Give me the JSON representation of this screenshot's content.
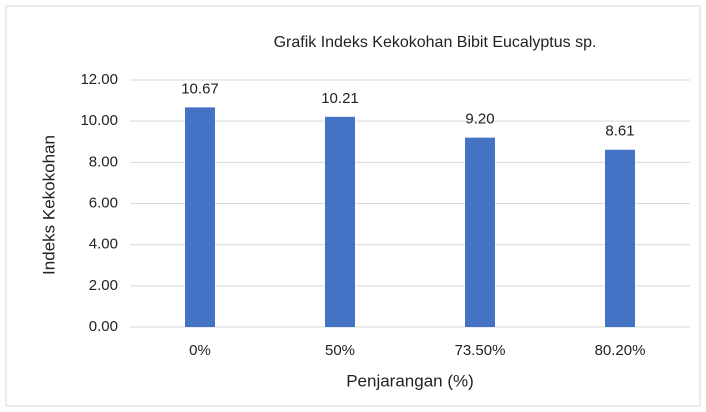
{
  "chart_data": {
    "type": "bar",
    "title": "Grafik Indeks Kekokohan Bibit Eucalyptus sp.",
    "x_label": "Penjarangan (%)",
    "y_label": "Indeks Kekokohan",
    "categories": [
      "0%",
      "50%",
      "73.50%",
      "80.20%"
    ],
    "values": [
      10.67,
      10.21,
      9.2,
      8.61
    ],
    "value_labels": [
      "10.67",
      "10.21",
      "9.20",
      "8.61"
    ],
    "color": "#4472c4",
    "ylim": [
      0,
      12
    ],
    "yticks": [
      {
        "value": 0,
        "label": "0.00"
      },
      {
        "value": 2,
        "label": "2.00"
      },
      {
        "value": 4,
        "label": "4.00"
      },
      {
        "value": 6,
        "label": "6.00"
      },
      {
        "value": 8,
        "label": "8.00"
      },
      {
        "value": 10,
        "label": "10.00"
      },
      {
        "value": 12,
        "label": "12.00"
      }
    ],
    "grid": true
  }
}
